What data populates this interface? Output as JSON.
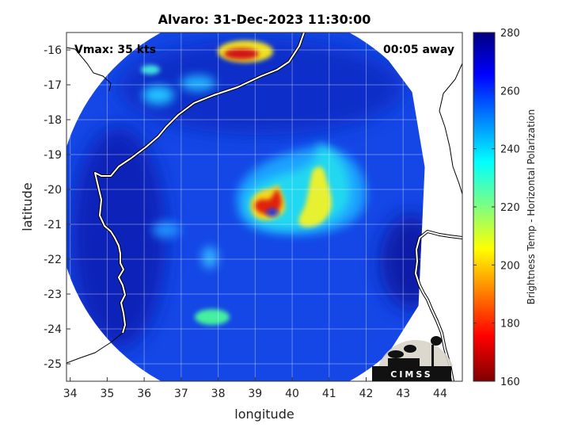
{
  "chart_data": {
    "type": "heatmap",
    "title": "Alvaro: 31-Dec-2023 11:30:00",
    "xlabel": "longitude",
    "ylabel": "latitude",
    "xlim": [
      33.9,
      44.6
    ],
    "ylim": [
      -25.5,
      -15.5
    ],
    "x_ticks": [
      "34",
      "35",
      "36",
      "37",
      "38",
      "39",
      "40",
      "41",
      "42",
      "43",
      "44"
    ],
    "y_ticks": [
      "-16",
      "-17",
      "-18",
      "-19",
      "-20",
      "-21",
      "-22",
      "-23",
      "-24",
      "-25"
    ],
    "grid": true,
    "colorbar": {
      "label": "Brightness Temp - Horizontal Polarization",
      "range": [
        160,
        280
      ],
      "ticks": [
        "280",
        "260",
        "240",
        "220",
        "200",
        "180",
        "160"
      ],
      "colormap": "jet"
    },
    "annotations": {
      "vmax": "Vmax: 35 kts",
      "time_away": "00:05 away"
    },
    "storm_center": {
      "lon": 39.6,
      "lat": -20.6
    },
    "swath_center": {
      "lon": 39.0,
      "lat": -20.5
    },
    "features": [
      {
        "lon": 39.5,
        "lat": -20.45,
        "temp": 180
      },
      {
        "lon": 39.2,
        "lat": -20.75,
        "temp": 178
      },
      {
        "lon": 39.6,
        "lat": -20.05,
        "temp": 186
      },
      {
        "lon": 40.8,
        "lat": -19.7,
        "temp": 205
      },
      {
        "lon": 40.7,
        "lat": -20.5,
        "temp": 212
      },
      {
        "lon": 38.7,
        "lat": -16.15,
        "temp": 180
      },
      {
        "lon": 38.4,
        "lat": -23.8,
        "temp": 228
      },
      {
        "lon": 36.8,
        "lat": -17.4,
        "temp": 232
      },
      {
        "lon": 37.5,
        "lat": -21.3,
        "temp": 240
      }
    ]
  },
  "logo": {
    "text": "CIMSS"
  }
}
